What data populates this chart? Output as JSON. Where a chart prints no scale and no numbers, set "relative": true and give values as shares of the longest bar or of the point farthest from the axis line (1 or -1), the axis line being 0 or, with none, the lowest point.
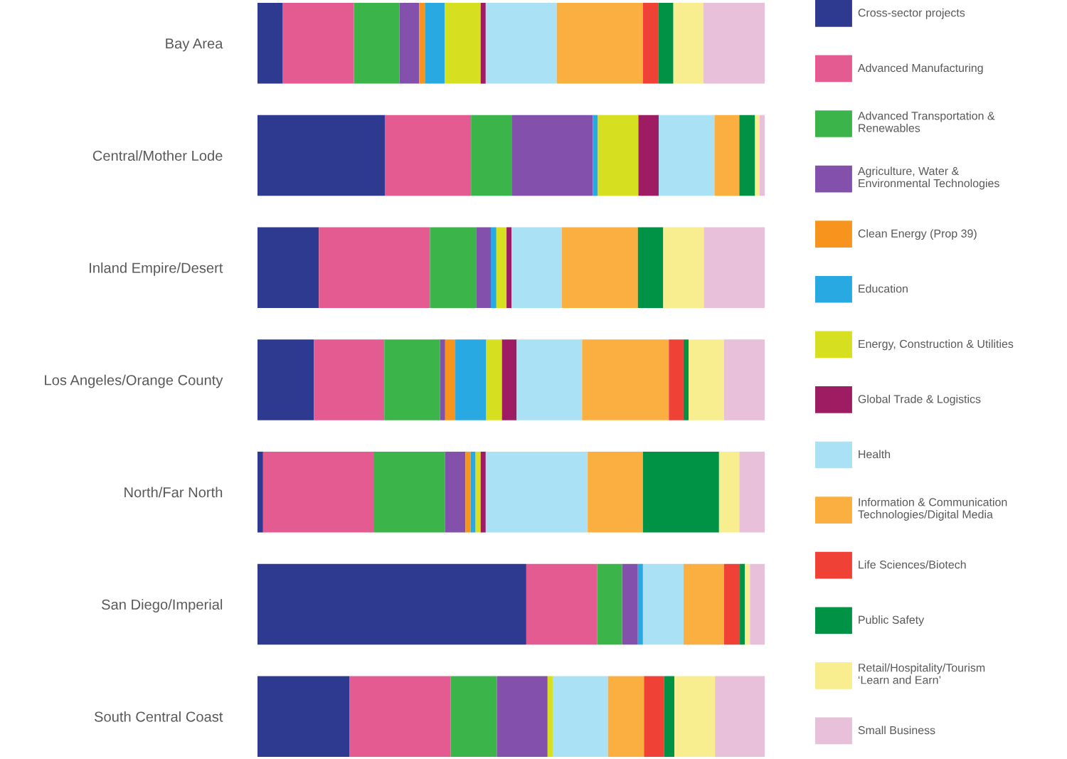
{
  "chart_data": {
    "type": "bar",
    "orientation": "horizontal",
    "stacked": true,
    "relative": true,
    "legend": "right",
    "tick_labels": "y",
    "categories": [
      "Bay Area",
      "Central/Mother Lode",
      "Inland Empire/Desert",
      "Los Angeles/Orange County",
      "North/Far North",
      "San Diego/Imperial",
      "South Central Coast"
    ],
    "series": [
      {
        "name": "Cross-sector projects",
        "color": "#2e3990",
        "values": [
          0.05,
          0.251,
          0.121,
          0.111,
          0.011,
          0.53,
          0.181
        ]
      },
      {
        "name": "Advanced Manufacturing",
        "color": "#e45b91",
        "values": [
          0.14,
          0.17,
          0.219,
          0.139,
          0.219,
          0.14,
          0.2
        ]
      },
      {
        "name": "Advanced Transportation &\nRenewables",
        "color": "#3bb54a",
        "values": [
          0.09,
          0.08,
          0.091,
          0.11,
          0.14,
          0.049,
          0.091
        ]
      },
      {
        "name": "Agriculture, Water &\nEnvironmental Technologies",
        "color": "#8351ab",
        "values": [
          0.039,
          0.16,
          0.029,
          0.01,
          0.04,
          0.031,
          0.1
        ]
      },
      {
        "name": "Clean Energy (Prop 39)",
        "color": "#f7941e",
        "values": [
          0.011,
          null,
          null,
          0.02,
          0.01,
          null,
          null
        ]
      },
      {
        "name": "Education",
        "color": "#29a9e1",
        "values": [
          0.039,
          0.01,
          0.011,
          0.061,
          0.01,
          0.01,
          null
        ]
      },
      {
        "name": "Energy, Construction & Utilities",
        "color": "#d7df21",
        "values": [
          0.071,
          0.08,
          0.02,
          0.031,
          0.01,
          null,
          0.01
        ]
      },
      {
        "name": "Global Trade & Logistics",
        "color": "#9d1c62",
        "values": [
          0.01,
          0.04,
          0.01,
          0.029,
          0.01,
          null,
          null
        ]
      },
      {
        "name": "Health",
        "color": "#abe1f4",
        "values": [
          0.14,
          0.11,
          0.099,
          0.129,
          0.201,
          0.08,
          0.109
        ]
      },
      {
        "name": "Information & Communication\nTechnologies/Digital Media",
        "color": "#fbaf40",
        "values": [
          0.17,
          0.049,
          0.15,
          0.171,
          0.109,
          0.08,
          0.071
        ]
      },
      {
        "name": "Life Sciences/Biotech",
        "color": "#ef4136",
        "values": [
          0.03,
          null,
          null,
          0.029,
          null,
          0.031,
          0.04
        ]
      },
      {
        "name": "Public Safety",
        "color": "#009345",
        "values": [
          0.03,
          0.031,
          0.05,
          0.01,
          0.15,
          0.01,
          0.02
        ]
      },
      {
        "name": "Retail/Hospitality/Tourism\n‘Learn and Earn’",
        "color": "#f8ee8f",
        "values": [
          0.059,
          0.009,
          0.08,
          0.07,
          0.04,
          0.01,
          0.08
        ]
      },
      {
        "name": "Small Business",
        "color": "#e8c0da",
        "values": [
          0.121,
          0.01,
          0.12,
          0.08,
          0.05,
          0.029,
          0.098
        ]
      }
    ]
  }
}
